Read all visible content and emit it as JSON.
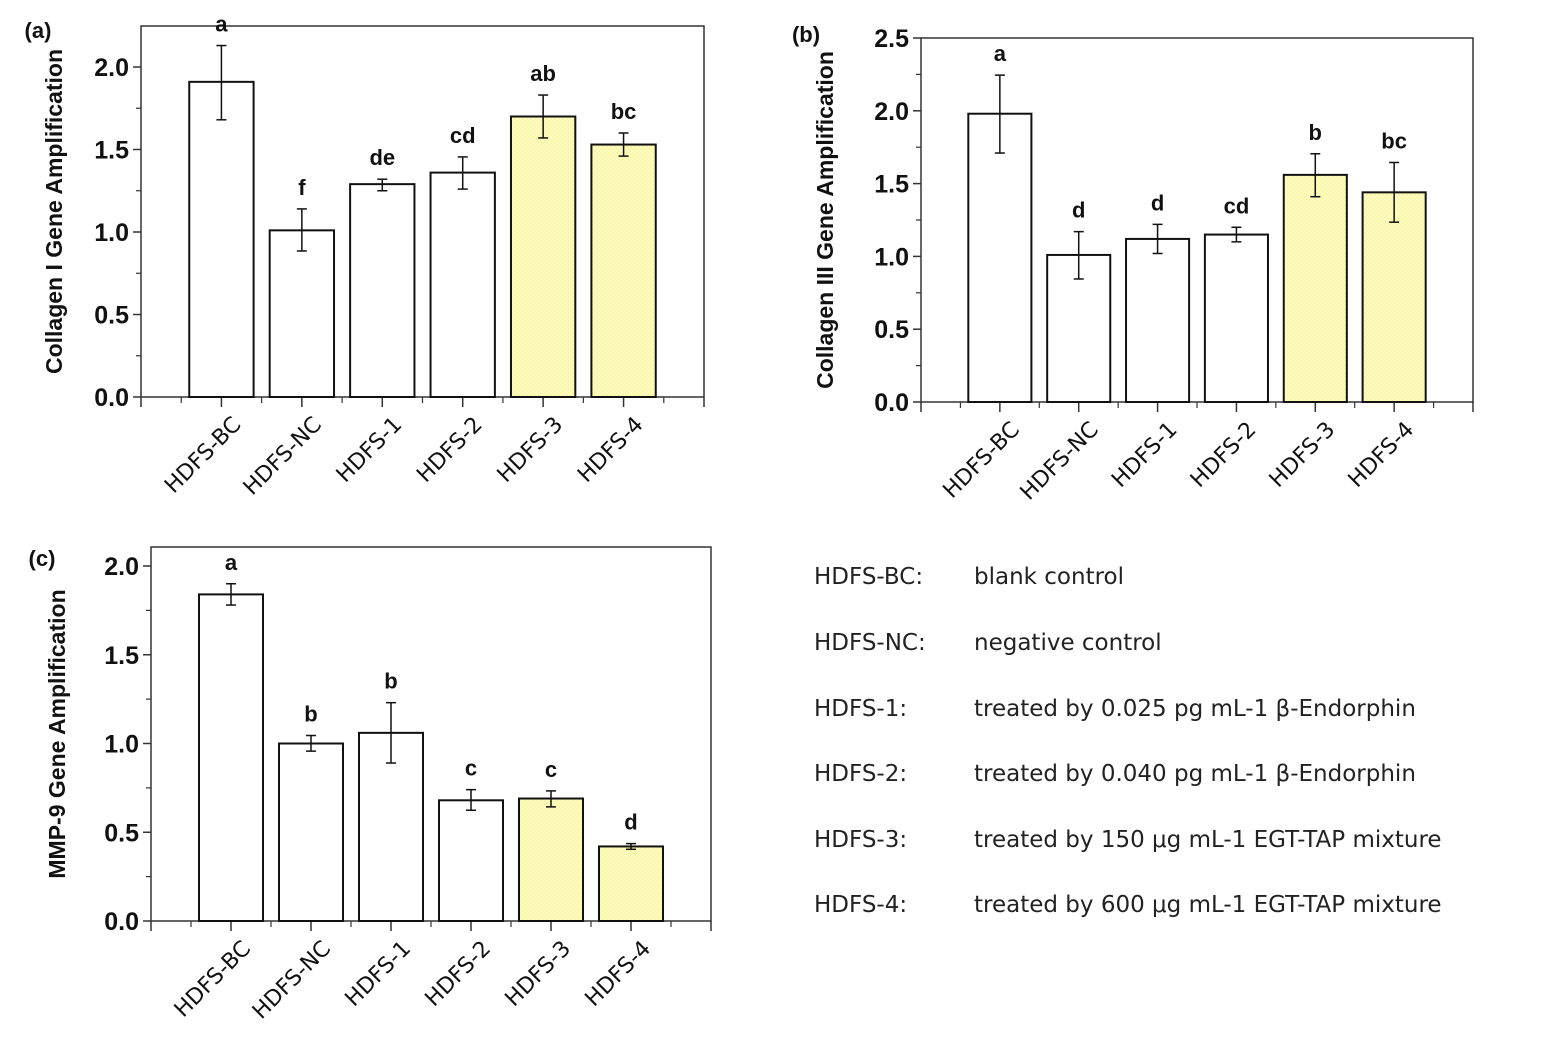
{
  "chart_data": [
    {
      "type": "bar",
      "panel": "(a)",
      "title": "",
      "xlabel": "",
      "ylabel": "Collagen I Gene Amplification",
      "categories": [
        "HDFS-BC",
        "HDFS-NC",
        "HDFS-1",
        "HDFS-2",
        "HDFS-3",
        "HDFS-4"
      ],
      "values": [
        1.91,
        1.01,
        1.29,
        1.36,
        1.7,
        1.53
      ],
      "error_upper": [
        2.13,
        1.14,
        1.32,
        1.455,
        1.83,
        1.6
      ],
      "error_lower": [
        1.68,
        0.885,
        1.25,
        1.26,
        1.57,
        1.46
      ],
      "significance_letters": [
        "a",
        "f",
        "de",
        "cd",
        "ab",
        "bc"
      ],
      "highlighted": [
        false,
        false,
        false,
        false,
        true,
        true
      ],
      "ylim": [
        0,
        2.2
      ],
      "yticks": [
        "0.0",
        "0.5",
        "1.0",
        "1.5",
        "2.0"
      ],
      "ytick_values": [
        0,
        0.5,
        1.0,
        1.5,
        2.0
      ],
      "grid": false
    },
    {
      "type": "bar",
      "panel": "(b)",
      "title": "",
      "xlabel": "",
      "ylabel": "Collagen III Gene Amplification",
      "categories": [
        "HDFS-BC",
        "HDFS-NC",
        "HDFS-1",
        "HDFS-2",
        "HDFS-3",
        "HDFS-4"
      ],
      "values": [
        1.98,
        1.01,
        1.12,
        1.15,
        1.56,
        1.44
      ],
      "error_upper": [
        2.245,
        1.17,
        1.22,
        1.2,
        1.705,
        1.645
      ],
      "error_lower": [
        1.71,
        0.845,
        1.02,
        1.1,
        1.41,
        1.235
      ],
      "significance_letters": [
        "a",
        "d",
        "d",
        "cd",
        "b",
        "bc"
      ],
      "highlighted": [
        false,
        false,
        false,
        false,
        true,
        true
      ],
      "ylim": [
        0,
        2.5
      ],
      "yticks": [
        "0.0",
        "0.5",
        "1.0",
        "1.5",
        "2.0",
        "2.5"
      ],
      "ytick_values": [
        0,
        0.5,
        1.0,
        1.5,
        2.0,
        2.5
      ],
      "grid": false
    },
    {
      "type": "bar",
      "panel": "(c)",
      "title": "",
      "xlabel": "",
      "ylabel": "MMP-9 Gene Amplification",
      "categories": [
        "HDFS-BC",
        "HDFS-NC",
        "HDFS-1",
        "HDFS-2",
        "HDFS-3",
        "HDFS-4"
      ],
      "values": [
        1.84,
        1.0,
        1.06,
        0.68,
        0.69,
        0.42
      ],
      "error_upper": [
        1.9,
        1.045,
        1.23,
        0.74,
        0.733,
        0.436
      ],
      "error_lower": [
        1.78,
        0.957,
        0.89,
        0.624,
        0.643,
        0.404
      ],
      "significance_letters": [
        "a",
        "b",
        "b",
        "c",
        "c",
        "d"
      ],
      "highlighted": [
        false,
        false,
        false,
        false,
        true,
        true
      ],
      "ylim": [
        0,
        2.1
      ],
      "yticks": [
        "0.0",
        "0.5",
        "1.0",
        "1.5",
        "2.0"
      ],
      "ytick_values": [
        0,
        0.5,
        1.0,
        1.5,
        2.0
      ],
      "grid": false
    }
  ],
  "colors": {
    "bar_plain": "#ffffff",
    "bar_highlight": "#fdfbc4",
    "stroke": "#111111"
  },
  "legend": [
    {
      "key": "HDFS-BC:",
      "desc": "blank control"
    },
    {
      "key": "HDFS-NC:",
      "desc": "negative control"
    },
    {
      "key": "HDFS-1:",
      "desc": "treated by 0.025 pg mL-1 β-Endorphin"
    },
    {
      "key": "HDFS-2:",
      "desc": "treated by 0.040 pg mL-1 β-Endorphin"
    },
    {
      "key": "HDFS-3:",
      "desc": "treated by 150 μg mL-1 EGT-TAP mixture"
    },
    {
      "key": "HDFS-4:",
      "desc": "treated by 600 μg mL-1 EGT-TAP mixture"
    }
  ]
}
